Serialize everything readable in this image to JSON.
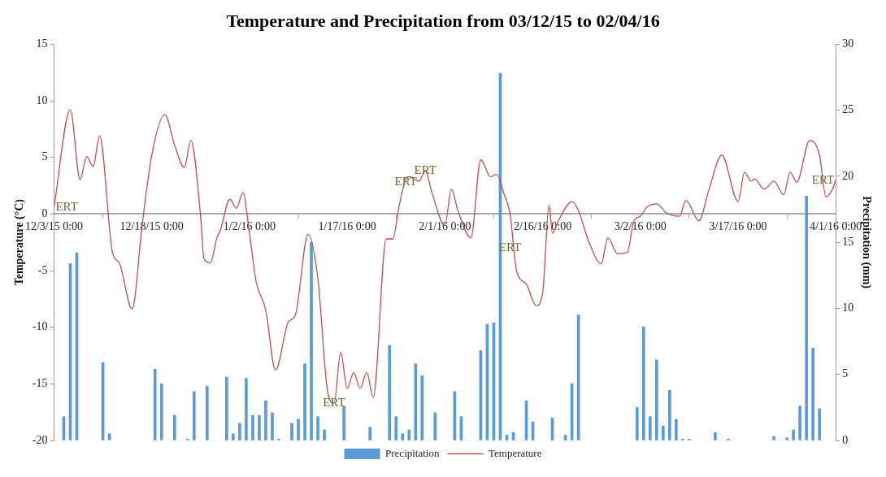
{
  "chart_data": {
    "type": "bar",
    "title": "Temperature and Precipitation from 03/12/15 to 02/04/16",
    "ylabel": "Temperature (°C)",
    "y2label": "Precipitation (mm)",
    "series": [
      {
        "name": "Precipitation",
        "axis": "y2",
        "color": "#5b9bd5",
        "x": [
          "2015-12-04T12:00",
          "2015-12-05T12:00",
          "2015-12-06T12:00",
          "2015-12-10T12:00",
          "2015-12-11T12:00",
          "2015-12-18T12:00",
          "2015-12-19T12:00",
          "2015-12-21T12:00",
          "2015-12-23T12:00",
          "2015-12-24T12:00",
          "2015-12-26T12:00",
          "2015-12-29T12:00",
          "2015-12-30T12:00",
          "2015-12-31T12:00",
          "2016-01-01T12:00",
          "2016-01-02T12:00",
          "2016-01-03T12:00",
          "2016-01-04T12:00",
          "2016-01-05T12:00",
          "2016-01-06T12:00",
          "2016-01-08T12:00",
          "2016-01-09T12:00",
          "2016-01-10T12:00",
          "2016-01-11T12:00",
          "2016-01-12T12:00",
          "2016-01-13T12:00",
          "2016-01-16T12:00",
          "2016-01-20T12:00",
          "2016-01-23T12:00",
          "2016-01-24T12:00",
          "2016-01-25T12:00",
          "2016-01-26T12:00",
          "2016-01-27T12:00",
          "2016-01-28T12:00",
          "2016-01-30T12:00",
          "2016-02-02T12:00",
          "2016-02-03T12:00",
          "2016-02-06T12:00",
          "2016-02-07T12:00",
          "2016-02-08T12:00",
          "2016-02-09T12:00",
          "2016-02-10T12:00",
          "2016-02-11T12:00",
          "2016-02-13T12:00",
          "2016-02-14T12:00",
          "2016-02-17T12:00",
          "2016-02-19T12:00",
          "2016-02-20T12:00",
          "2016-02-21T12:00",
          "2016-03-01T12:00",
          "2016-03-02T12:00",
          "2016-03-03T12:00",
          "2016-03-04T12:00",
          "2016-03-05T12:00",
          "2016-03-06T12:00",
          "2016-03-07T12:00",
          "2016-03-08T12:00",
          "2016-03-09T12:00",
          "2016-03-13T12:00",
          "2016-03-15T12:00",
          "2016-03-22T12:00",
          "2016-03-24T12:00",
          "2016-03-25T12:00",
          "2016-03-26T12:00",
          "2016-03-27T12:00",
          "2016-03-28T12:00",
          "2016-03-29T12:00"
        ],
        "values": [
          1.8,
          13.4,
          14.2,
          5.9,
          0.5,
          5.4,
          4.3,
          1.9,
          0.1,
          3.7,
          4.1,
          4.8,
          0.5,
          1.3,
          4.7,
          1.9,
          1.9,
          3.0,
          2.1,
          0.1,
          1.3,
          1.6,
          5.8,
          15,
          1.8,
          0.8,
          2.6,
          1.0,
          7.2,
          1.8,
          0.5,
          0.8,
          5.8,
          4.9,
          2.1,
          3.7,
          1.8,
          6.8,
          8.8,
          8.9,
          27.8,
          0.4,
          0.6,
          3.0,
          1.4,
          1.7,
          0.4,
          4.3,
          9.5,
          2.5,
          8.6,
          1.8,
          6.1,
          1.1,
          3.8,
          1.6,
          0.1,
          0.1,
          0.6,
          0.1,
          0.3,
          0.2,
          0.8,
          2.6,
          18.5,
          7.0,
          2.4
        ]
      },
      {
        "name": "Temperature",
        "type": "line",
        "color": "#c0504d",
        "x": [
          "2015-12-03",
          "2015-12-05T12:00",
          "2015-12-07",
          "2015-12-08",
          "2015-12-09",
          "2015-12-10",
          "2015-12-12",
          "2015-12-13",
          "2015-12-15",
          "2015-12-16T12:00",
          "2015-12-18",
          "2015-12-20",
          "2015-12-21T12:00",
          "2015-12-23",
          "2015-12-24",
          "2015-12-25T12:00",
          "2015-12-26",
          "2015-12-27",
          "2015-12-28",
          "2015-12-28T12:00",
          "2015-12-30",
          "2015-12-31",
          "2016-01-01",
          "2016-01-02",
          "2016-01-03",
          "2016-01-04T12:00",
          "2016-01-06",
          "2016-01-08",
          "2016-01-09",
          "2016-01-11",
          "2016-01-12T12:00",
          "2016-01-14",
          "2016-01-15",
          "2016-01-16",
          "2016-01-17",
          "2016-01-18",
          "2016-01-19",
          "2016-01-20",
          "2016-01-21",
          "2016-01-23",
          "2016-01-24",
          "2016-01-25",
          "2016-01-26",
          "2016-01-26T12:00",
          "2016-01-28",
          "2016-01-29",
          "2016-01-30",
          "2016-02-01",
          "2016-02-02",
          "2016-02-03",
          "2016-02-05",
          "2016-02-06T12:00",
          "2016-02-08",
          "2016-02-09",
          "2016-02-10",
          "2016-02-11",
          "2016-02-12",
          "2016-02-13T12:00",
          "2016-02-15",
          "2016-02-16",
          "2016-02-17",
          "2016-02-17T12:00",
          "2016-02-18T12:00",
          "2016-02-20T12:00",
          "2016-02-21T12:00",
          "2016-02-23",
          "2016-02-25",
          "2016-02-26",
          "2016-02-27T12:00",
          "2016-02-29",
          "2016-03-01",
          "2016-03-02",
          "2016-03-03",
          "2016-03-04T12:00",
          "2016-03-06",
          "2016-03-08",
          "2016-03-09",
          "2016-03-11",
          "2016-03-12T12:00",
          "2016-03-14T12:00",
          "2016-03-17",
          "2016-03-18",
          "2016-03-19",
          "2016-03-19T12:00",
          "2016-03-21",
          "2016-03-22T12:00",
          "2016-03-24",
          "2016-03-25",
          "2016-03-26",
          "2016-03-28",
          "2016-03-29T12:00",
          "2016-03-30T12:00",
          "2016-03-31T12:00",
          "2016-04-01"
        ],
        "values": [
          0.6,
          9.2,
          3.0,
          5.1,
          4.2,
          6.9,
          -3.5,
          -4.3,
          -8.4,
          -1.1,
          5.2,
          8.8,
          6.1,
          4.1,
          6.5,
          -0.2,
          -3.9,
          -4.3,
          -2.1,
          -1.5,
          1.3,
          0.5,
          1.9,
          -1.7,
          -5.9,
          -8.5,
          -13.8,
          -9.5,
          -9.0,
          -1.8,
          -5.7,
          -15.7,
          -16.7,
          -12.2,
          -15.4,
          -14,
          -15.4,
          -14,
          -16.2,
          -2.2,
          -2.2,
          0.8,
          3.1,
          3.3,
          2.9,
          3.8,
          1.9,
          -1.0,
          2.2,
          0.3,
          -2.1,
          4.8,
          3.3,
          3.5,
          1.9,
          0,
          -5.0,
          -6.2,
          -8.1,
          -7.0,
          0.8,
          -1.7,
          -0.5,
          1.1,
          0.3,
          -2.3,
          -4.4,
          -2.1,
          -3.5,
          -3.4,
          -0.6,
          -0.2,
          0.6,
          0.9,
          0.1,
          -0.2,
          1.2,
          -0.6,
          2.1,
          5.2,
          1.1,
          3.7,
          2.9,
          3.1,
          2.2,
          2.9,
          1.7,
          3.7,
          2.8,
          6.5,
          5.2,
          1.5,
          2.2,
          3.0
        ]
      }
    ],
    "xlim": [
      "2015-12-03",
      "2016-04-01"
    ],
    "xticks": [
      {
        "value": "2015-12-03",
        "label": "12/3/15 0:00"
      },
      {
        "value": "2015-12-18",
        "label": "12/18/15 0:00"
      },
      {
        "value": "2016-01-02",
        "label": "1/2/16 0:00"
      },
      {
        "value": "2016-01-17",
        "label": "1/17/16 0:00"
      },
      {
        "value": "2016-02-01",
        "label": "2/1/16 0:00"
      },
      {
        "value": "2016-02-16",
        "label": "2/16/16 0:00"
      },
      {
        "value": "2016-03-02",
        "label": "3/2/16 0:00"
      },
      {
        "value": "2016-03-17",
        "label": "3/17/16 0:00"
      },
      {
        "value": "2016-04-01",
        "label": "4/1/16 0:00"
      }
    ],
    "ylim": [
      -20,
      15
    ],
    "yticks": [
      -20,
      -15,
      -10,
      -5,
      0,
      5,
      10,
      15
    ],
    "y2lim": [
      0,
      30
    ],
    "y2ticks": [
      0,
      5,
      10,
      15,
      20,
      25,
      30
    ],
    "grid": false,
    "legend": "bottom",
    "marker": "none",
    "line_style": "solid",
    "annotations": [
      {
        "text": "ERT",
        "x": "2015-12-03",
        "y": 0.6
      },
      {
        "text": "ERT",
        "x": "2016-01-15",
        "y": -16.7
      },
      {
        "text": "ERT",
        "x": "2016-01-26",
        "y": 2.8
      },
      {
        "text": "ERT",
        "x": "2016-01-29",
        "y": 3.8
      },
      {
        "text": "ERT",
        "x": "2016-02-11",
        "y": -3
      },
      {
        "text": "ERT",
        "x": "2016-04-01",
        "y": 3.0
      }
    ]
  }
}
